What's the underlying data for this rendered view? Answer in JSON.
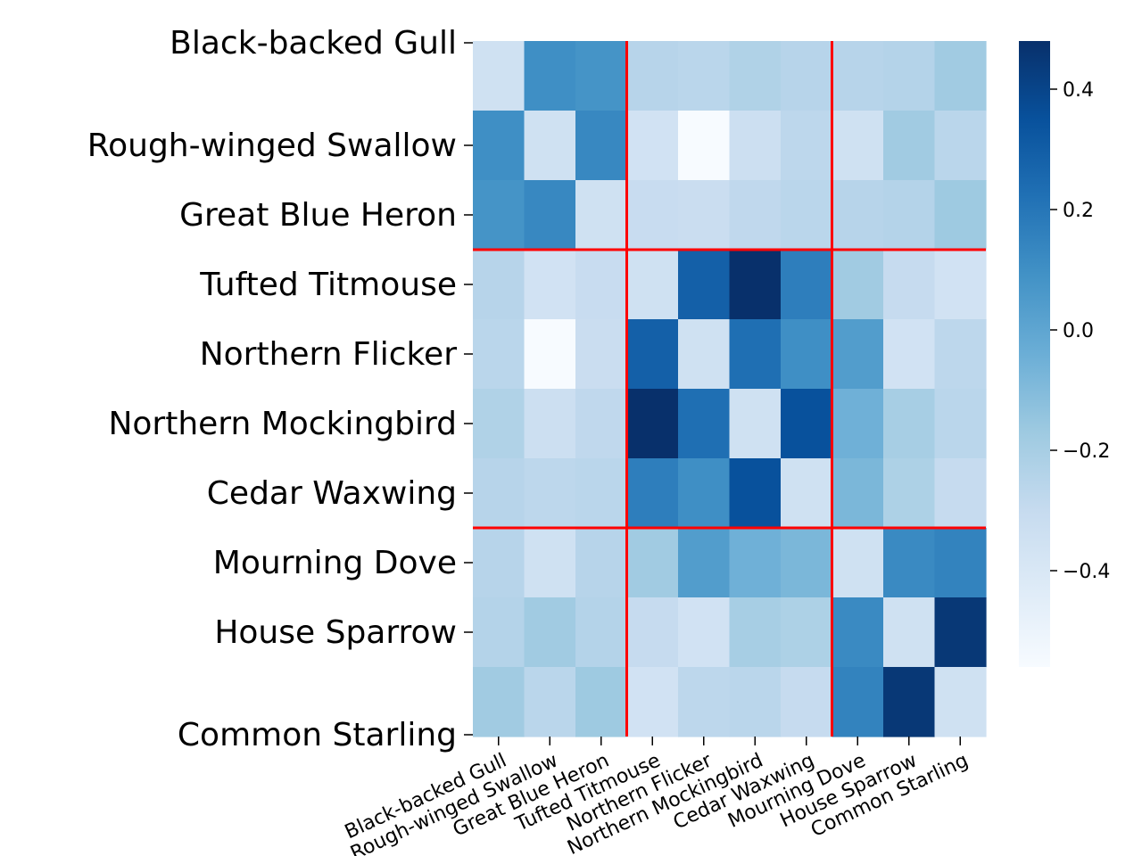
{
  "chart_data": {
    "type": "heatmap",
    "title": "",
    "xlabel": "",
    "ylabel": "",
    "rows": [
      "Black-backed Gull",
      "Rough-winged Swallow",
      "Great Blue Heron",
      "Tufted Titmouse",
      "Northern Flicker",
      "Northern Mockingbird",
      "Cedar Waxwing",
      "Mourning Dove",
      "House Sparrow",
      "Common Starling"
    ],
    "columns": [
      "Black-backed Gull",
      "Rough-winged Swallow",
      "Great Blue Heron",
      "Tufted Titmouse",
      "Northern Flicker",
      "Northern Mockingbird",
      "Cedar Waxwing",
      "Mourning Dove",
      "House Sparrow",
      "Common Starling"
    ],
    "values": [
      [
        -0.35,
        0.1,
        0.08,
        -0.25,
        -0.26,
        -0.23,
        -0.25,
        -0.25,
        -0.24,
        -0.18
      ],
      [
        0.1,
        -0.35,
        0.13,
        -0.36,
        -0.56,
        -0.33,
        -0.27,
        -0.35,
        -0.18,
        -0.26
      ],
      [
        0.08,
        0.13,
        -0.35,
        -0.31,
        -0.32,
        -0.28,
        -0.26,
        -0.25,
        -0.24,
        -0.17
      ],
      [
        -0.25,
        -0.36,
        -0.31,
        -0.35,
        0.29,
        0.48,
        0.17,
        -0.18,
        -0.3,
        -0.36
      ],
      [
        -0.26,
        -0.56,
        -0.32,
        0.29,
        -0.35,
        0.23,
        0.1,
        0.04,
        -0.36,
        -0.27
      ],
      [
        -0.23,
        -0.33,
        -0.28,
        0.48,
        0.23,
        -0.35,
        0.35,
        -0.05,
        -0.2,
        -0.26
      ],
      [
        -0.25,
        -0.27,
        -0.26,
        0.17,
        0.1,
        0.35,
        -0.35,
        -0.08,
        -0.22,
        -0.3
      ],
      [
        -0.25,
        -0.35,
        -0.25,
        -0.18,
        0.04,
        -0.05,
        -0.08,
        -0.35,
        0.12,
        0.15
      ],
      [
        -0.24,
        -0.18,
        -0.24,
        -0.3,
        -0.36,
        -0.2,
        -0.22,
        0.12,
        -0.35,
        0.45
      ],
      [
        -0.18,
        -0.26,
        -0.17,
        -0.36,
        -0.27,
        -0.26,
        -0.3,
        0.15,
        0.45,
        -0.35
      ]
    ],
    "colormap": "Blues",
    "vmin": -0.56,
    "vmax": 0.48,
    "colorbar": {
      "ticks": [
        0.4,
        0.2,
        0.0,
        -0.2,
        -0.4
      ],
      "tick_labels": [
        "0.4",
        "0.2",
        "0.0",
        "−0.2",
        "−0.4"
      ]
    },
    "group_boundaries_after_index": [
      2,
      6
    ],
    "group_line_color": "#ff0000",
    "grid": false,
    "legend": "none"
  }
}
